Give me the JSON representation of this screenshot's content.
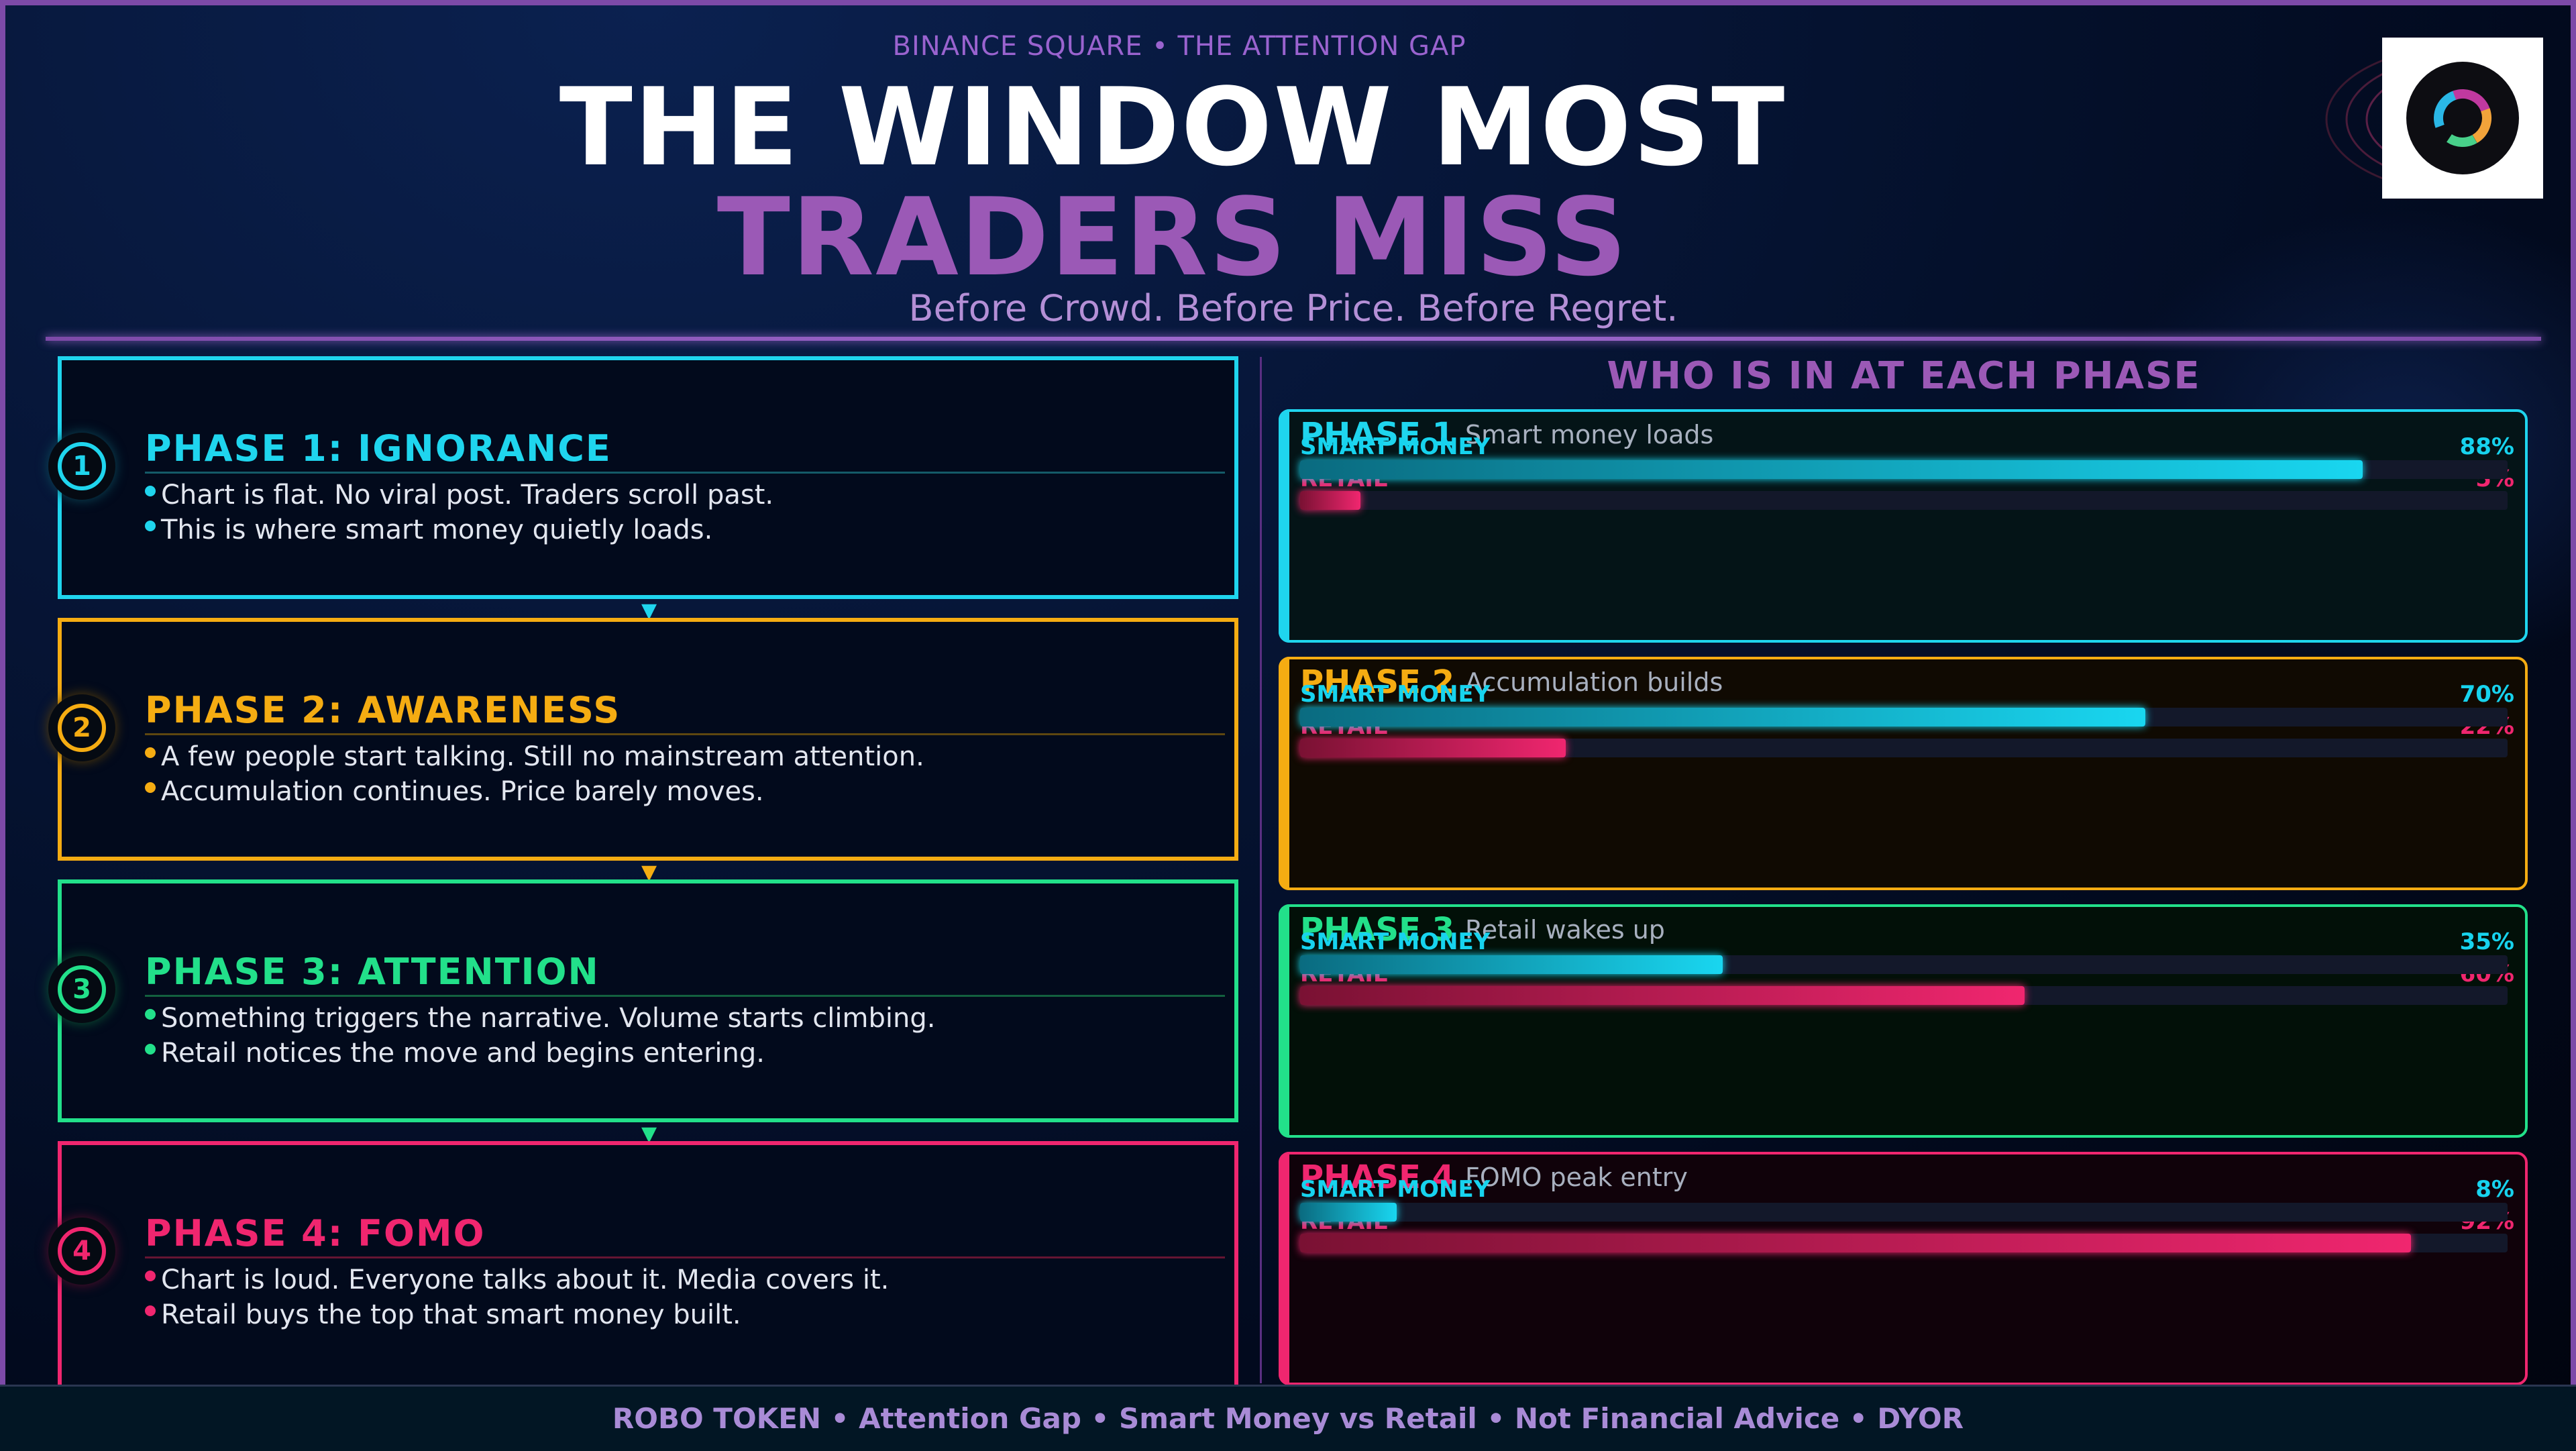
{
  "header": {
    "top_label": "BINANCE SQUARE  •  THE ATTENTION GAP",
    "title_line1": "THE WINDOW MOST",
    "title_line2": "TRADERS MISS",
    "subtitle": "Before Crowd. Before Price. Before Regret."
  },
  "colors": {
    "phase1": "#1fd5ee",
    "phase2": "#f5ac12",
    "phase3": "#22e08a",
    "phase4": "#f0266f",
    "smart_money": "#17d3ee",
    "retail": "#f0266f",
    "accent": "#9b59b6"
  },
  "phases": [
    {
      "number": "1",
      "title": "PHASE 1: IGNORANCE",
      "bullets": [
        "Chart is flat. No viral post. Traders scroll past.",
        "This is where smart money quietly loads."
      ]
    },
    {
      "number": "2",
      "title": "PHASE 2: AWARENESS",
      "bullets": [
        "A few people start talking. Still no mainstream attention.",
        "Accumulation continues. Price barely moves."
      ]
    },
    {
      "number": "3",
      "title": "PHASE 3: ATTENTION",
      "bullets": [
        "Something triggers the narrative. Volume starts climbing.",
        "Retail notices the move and begins entering."
      ]
    },
    {
      "number": "4",
      "title": "PHASE 4: FOMO",
      "bullets": [
        "Chart is loud. Everyone talks about it. Media covers it.",
        "Retail buys the top that smart money built."
      ]
    }
  ],
  "arrow_glyph": "▼",
  "right_panel": {
    "title": "WHO IS IN AT EACH PHASE",
    "smart_label": "SMART MONEY",
    "retail_label": "RETAIL",
    "rows": [
      {
        "phase": "PHASE 1",
        "desc": "Smart money loads",
        "smart_pct": 88,
        "retail_pct": 5,
        "smart_text": "88%",
        "retail_text": "5%"
      },
      {
        "phase": "PHASE 2",
        "desc": "Accumulation builds",
        "smart_pct": 70,
        "retail_pct": 22,
        "smart_text": "70%",
        "retail_text": "22%"
      },
      {
        "phase": "PHASE 3",
        "desc": "Retail wakes up",
        "smart_pct": 35,
        "retail_pct": 60,
        "smart_text": "35%",
        "retail_text": "60%"
      },
      {
        "phase": "PHASE 4",
        "desc": "FOMO peak entry",
        "smart_pct": 8,
        "retail_pct": 92,
        "smart_text": "8%",
        "retail_text": "92%"
      }
    ]
  },
  "footer": "ROBO TOKEN  •  Attention Gap  •  Smart Money vs Retail  •  Not Financial Advice  •  DYOR"
}
